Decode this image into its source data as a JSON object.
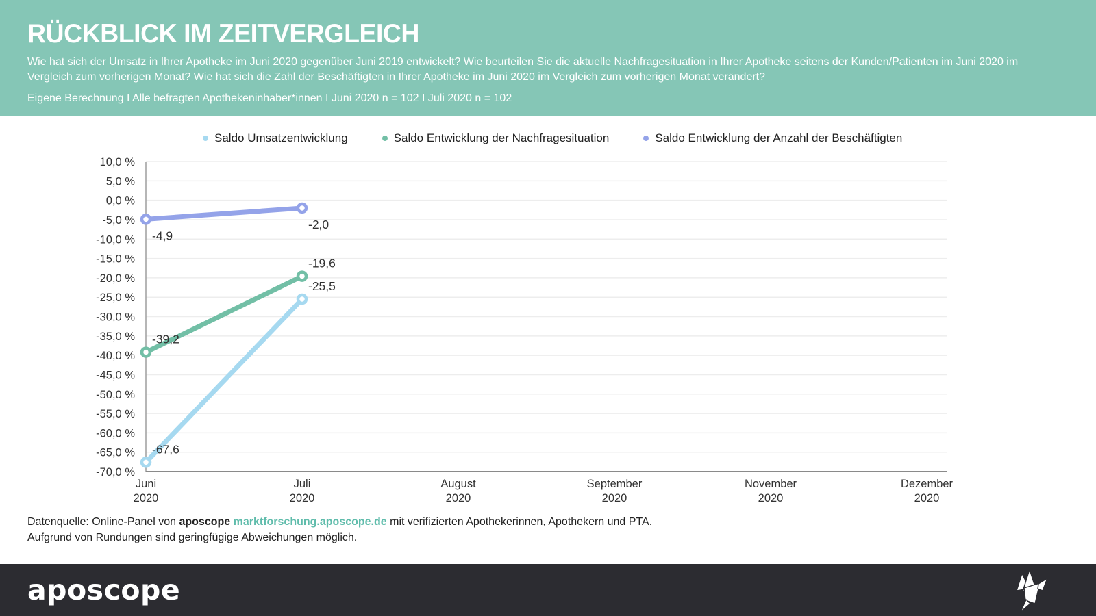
{
  "header": {
    "title": "RÜCKBLICK IM ZEITVERGLEICH",
    "subtitle": "Wie hat sich der Umsatz in Ihrer Apotheke im Juni 2020 gegenüber Juni 2019 entwickelt? Wie beurteilen Sie die aktuelle Nachfragesituation in Ihrer Apotheke seitens der Kunden/Patienten im Juni 2020 im Vergleich zum vorherigen Monat? Wie hat sich die Zahl der Beschäftigten in Ihrer Apotheke im Juni 2020 im Vergleich zum vorherigen Monat verändert?",
    "note": "Eigene Berechnung I Alle befragten Apothekeninhaber*innen I Juni 2020 n = 102 I Juli 2020 n = 102",
    "background_color": "#85C6B6"
  },
  "chart_data": {
    "type": "line",
    "categories": [
      "Juni",
      "Juli",
      "August",
      "September",
      "November",
      "Dezember"
    ],
    "year_label": "2020",
    "ylim": [
      -70,
      10
    ],
    "ytick_step": 5,
    "ytick_labels": [
      "10,0 %",
      "5,0 %",
      "0,0 %",
      "-5,0 %",
      "-10,0 %",
      "-15,0 %",
      "-20,0 %",
      "-25,0 %",
      "-30,0 %",
      "-35,0 %",
      "-40,0 %",
      "-45,0 %",
      "-50,0 %",
      "-55,0 %",
      "-60,0 %",
      "-65,0 %",
      "-70,0 %"
    ],
    "grid": true,
    "legend_position": "top",
    "series": [
      {
        "name": "Saldo Umsatzentwicklung",
        "color": "#A6D9F0",
        "values": [
          -67.6,
          -25.5
        ],
        "point_labels": [
          "-67,6",
          "-25,5"
        ],
        "label_side": "above"
      },
      {
        "name": "Saldo Entwicklung der Nachfragesituation",
        "color": "#72BFA6",
        "values": [
          -39.2,
          -19.6
        ],
        "point_labels": [
          "-39,2",
          "-19,6"
        ],
        "label_side": "above"
      },
      {
        "name": "Saldo Entwicklung der Anzahl der Beschäftigten",
        "color": "#94A3E9",
        "values": [
          -4.9,
          -2.0
        ],
        "point_labels": [
          "-4,9",
          "-2,0"
        ],
        "label_side": "below"
      }
    ]
  },
  "footer": {
    "source_prefix": "Datenquelle: Online-Panel von ",
    "source_brand": "aposcope",
    "source_link": "marktforschung.aposcope.de",
    "source_suffix": " mit verifizierten Apothekerinnen, Apothekern und PTA.",
    "note": "Aufgrund von Rundungen sind geringfügige Abweichungen möglich.",
    "link_color": "#5FBCAB"
  },
  "brandbar": {
    "logo_text": "aposcope",
    "background_color": "#2C2C31",
    "icon": "origami-bird-icon"
  }
}
